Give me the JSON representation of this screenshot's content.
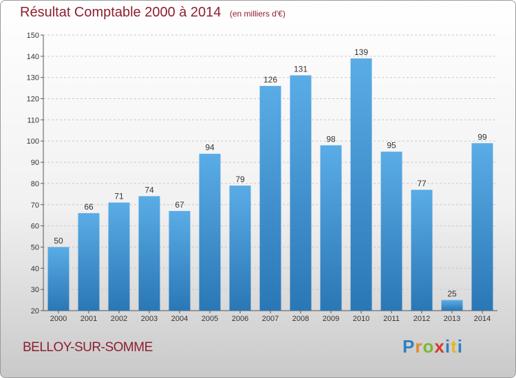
{
  "header": {
    "title": "Résultat Comptable 2000 à 2014",
    "subtitle": "(en milliers d'€)"
  },
  "footer": {
    "commune": "BELLOY-SUR-SOMME",
    "logo_letters": [
      "P",
      "r",
      "o",
      "x",
      "i",
      "t",
      "i"
    ]
  },
  "colors": {
    "title": "#8c1f2f",
    "bar_top": "#5aace6",
    "bar_bottom": "#2a77b6",
    "grid": "#c8c8c8"
  },
  "chart_data": {
    "type": "bar",
    "title": "Résultat Comptable 2000 à 2014",
    "subtitle": "(en milliers d'€)",
    "xlabel": "",
    "ylabel": "",
    "categories": [
      "2000",
      "2001",
      "2002",
      "2003",
      "2004",
      "2005",
      "2006",
      "2007",
      "2008",
      "2009",
      "2010",
      "2011",
      "2012",
      "2013",
      "2014"
    ],
    "values": [
      50,
      66,
      71,
      74,
      67,
      94,
      79,
      126,
      131,
      98,
      139,
      95,
      77,
      25,
      99
    ],
    "ylim": [
      20,
      150
    ],
    "yticks": [
      20,
      30,
      40,
      50,
      60,
      70,
      80,
      90,
      100,
      110,
      120,
      130,
      140,
      150
    ],
    "grid": "horizontal-dashed",
    "legend": "none"
  }
}
